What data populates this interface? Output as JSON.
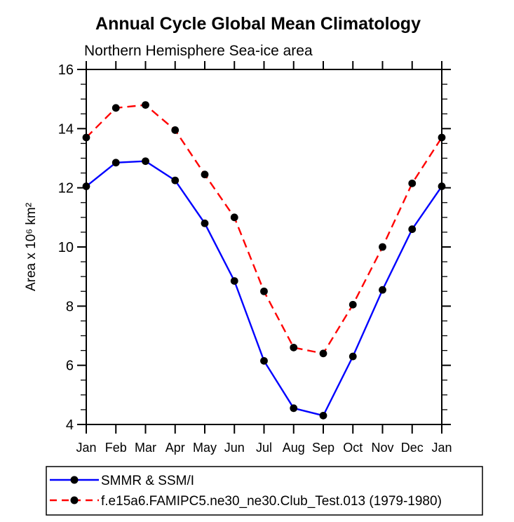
{
  "chart_data": {
    "type": "line",
    "title": "Annual Cycle Global Mean Climatology",
    "subtitle": "Northern Hemisphere Sea-ice area",
    "ylabel": "Area x 10⁶ km²",
    "xlabel": "",
    "ylim": [
      4,
      16
    ],
    "yticks": [
      4,
      6,
      8,
      10,
      12,
      14,
      16
    ],
    "y_minor_step": 0.5,
    "x_labels": [
      "Jan",
      "Feb",
      "Mar",
      "Apr",
      "May",
      "Jun",
      "Jul",
      "Aug",
      "Sep",
      "Oct",
      "Nov",
      "Dec",
      "Jan"
    ],
    "grid": false,
    "legend_position": "bottom-left",
    "marker_color": "#000000",
    "axis_color": "#000000",
    "background_color": "#ffffff",
    "series": [
      {
        "name": "SMMR & SSM/I",
        "color": "#0000ff",
        "style": "solid",
        "marker": "filled-circle",
        "values": [
          12.05,
          12.85,
          12.9,
          12.25,
          10.8,
          8.85,
          6.15,
          4.55,
          4.3,
          6.3,
          8.55,
          10.6,
          12.05
        ]
      },
      {
        "name": "f.e15a6.FAMIPC5.ne30_ne30.Club_Test.013 (1979-1980)",
        "color": "#ff0000",
        "style": "dashed",
        "marker": "filled-circle",
        "values": [
          13.7,
          14.7,
          14.8,
          13.95,
          12.45,
          11.0,
          8.5,
          6.6,
          6.4,
          8.05,
          10.0,
          12.15,
          13.7
        ]
      }
    ]
  }
}
